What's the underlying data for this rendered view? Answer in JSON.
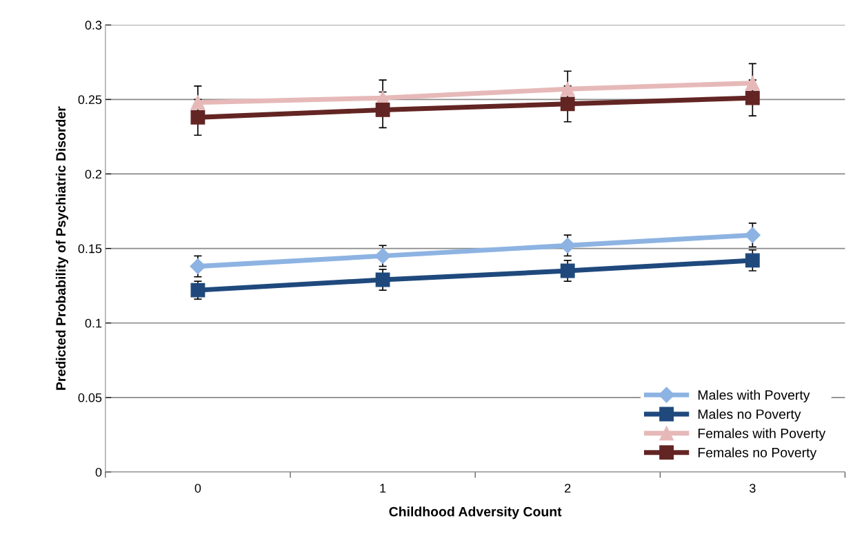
{
  "chart_data": {
    "type": "line",
    "xlabel": "Childhood Adversity Count",
    "ylabel": "Predicted Probability of Psychiatric Disorder",
    "categories": [
      "0",
      "1",
      "2",
      "3"
    ],
    "ylim": [
      0,
      0.3
    ],
    "yticks": [
      0,
      0.05,
      0.1,
      0.15,
      0.2,
      0.25,
      0.3
    ],
    "grid": "y",
    "legend": "bottom right",
    "series": [
      {
        "name": "Males with Poverty",
        "color": "#8db3e2",
        "marker": "diamond",
        "values": [
          0.138,
          0.145,
          0.152,
          0.159
        ],
        "errors": [
          0.007,
          0.007,
          0.007,
          0.008
        ]
      },
      {
        "name": "Males no Poverty",
        "color": "#1f497d",
        "marker": "square",
        "values": [
          0.122,
          0.129,
          0.135,
          0.142
        ],
        "errors": [
          0.006,
          0.007,
          0.007,
          0.007
        ]
      },
      {
        "name": "Females with Poverty",
        "color": "#e6b9b8",
        "marker": "triangle",
        "values": [
          0.248,
          0.251,
          0.257,
          0.261
        ],
        "errors": [
          0.011,
          0.012,
          0.012,
          0.013
        ]
      },
      {
        "name": "Females no Poverty",
        "color": "#632523",
        "marker": "square",
        "values": [
          0.238,
          0.243,
          0.247,
          0.251
        ],
        "errors": [
          0.012,
          0.012,
          0.012,
          0.012
        ]
      }
    ]
  }
}
